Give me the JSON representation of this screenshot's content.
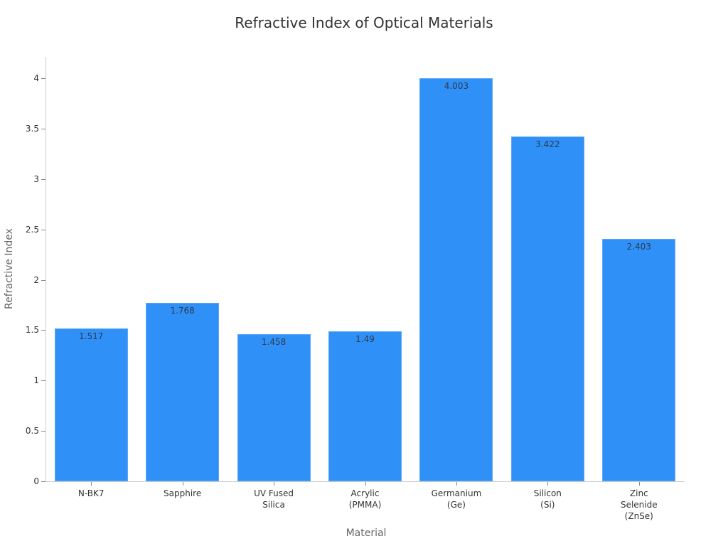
{
  "chart_data": {
    "type": "bar",
    "title": "Refractive Index of Optical Materials",
    "xlabel": "Material",
    "ylabel": "Refractive Index",
    "categories": [
      "N-BK7",
      "Sapphire",
      "UV Fused\nSilica",
      "Acrylic\n(PMMA)",
      "Germanium\n(Ge)",
      "Silicon\n(Si)",
      "Zinc\nSelenide\n(ZnSe)"
    ],
    "values": [
      1.517,
      1.768,
      1.458,
      1.49,
      4.003,
      3.422,
      2.403
    ],
    "value_labels": [
      "1.517",
      "1.768",
      "1.458",
      "1.49",
      "4.003",
      "3.422",
      "2.403"
    ],
    "yticks": [
      "0",
      "0.5",
      "1",
      "1.5",
      "2",
      "2.5",
      "3",
      "3.5",
      "4"
    ],
    "ylim": [
      0,
      4.2
    ],
    "grid": false,
    "legend": null,
    "bar_color": "#2f91f7"
  }
}
